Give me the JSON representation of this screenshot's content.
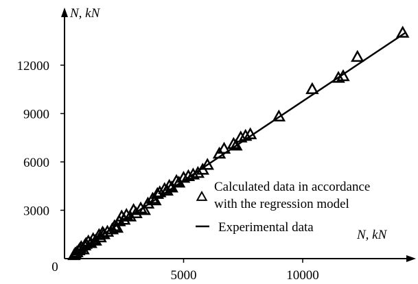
{
  "chart_data": {
    "type": "scatter",
    "x_axis": {
      "label": "N, kN",
      "range": [
        0,
        14500
      ],
      "ticks": [
        0,
        5000,
        10000
      ]
    },
    "y_axis": {
      "label": "N, kN",
      "range": [
        0,
        14500
      ],
      "ticks": [
        3000,
        6000,
        9000,
        12000
      ]
    },
    "grid": false,
    "legend": {
      "placement": "right-middle",
      "entries": [
        {
          "series": "calculated",
          "marker": "triangle",
          "label_lines": [
            "Calculated data in accordance",
            "with the regression model"
          ]
        },
        {
          "series": "experimental",
          "marker": "line",
          "label_lines": [
            "Experimental data"
          ]
        }
      ]
    },
    "series": [
      {
        "id": "calculated",
        "style": "triangle-marker",
        "color": "#000000",
        "points": [
          [
            400,
            200
          ],
          [
            450,
            300
          ],
          [
            520,
            380
          ],
          [
            600,
            500
          ],
          [
            650,
            600
          ],
          [
            700,
            700
          ],
          [
            780,
            560
          ],
          [
            850,
            800
          ],
          [
            900,
            900
          ],
          [
            1000,
            1050
          ],
          [
            1100,
            950
          ],
          [
            1200,
            1200
          ],
          [
            1300,
            1100
          ],
          [
            1450,
            1450
          ],
          [
            1500,
            1300
          ],
          [
            1600,
            1600
          ],
          [
            1650,
            1500
          ],
          [
            1800,
            1650
          ],
          [
            2000,
            1800
          ],
          [
            2100,
            2000
          ],
          [
            2200,
            1900
          ],
          [
            2300,
            2300
          ],
          [
            2400,
            2600
          ],
          [
            2500,
            2400
          ],
          [
            2600,
            2700
          ],
          [
            2750,
            2600
          ],
          [
            2900,
            3000
          ],
          [
            3000,
            2800
          ],
          [
            3200,
            3100
          ],
          [
            3350,
            3000
          ],
          [
            3500,
            3400
          ],
          [
            3700,
            3700
          ],
          [
            3800,
            3600
          ],
          [
            3900,
            4000
          ],
          [
            4000,
            4100
          ],
          [
            4200,
            4300
          ],
          [
            4300,
            4200
          ],
          [
            4400,
            4500
          ],
          [
            4500,
            4400
          ],
          [
            4700,
            4800
          ],
          [
            4800,
            4700
          ],
          [
            5000,
            5000
          ],
          [
            5200,
            5100
          ],
          [
            5400,
            5200
          ],
          [
            5600,
            5300
          ],
          [
            5800,
            5500
          ],
          [
            6000,
            5800
          ],
          [
            6500,
            6500
          ],
          [
            6700,
            6800
          ],
          [
            7100,
            7100
          ],
          [
            7200,
            7000
          ],
          [
            7400,
            7500
          ],
          [
            7600,
            7600
          ],
          [
            7800,
            7700
          ],
          [
            9000,
            8800
          ],
          [
            10400,
            10500
          ],
          [
            11500,
            11200
          ],
          [
            11700,
            11300
          ],
          [
            12300,
            12500
          ],
          [
            14200,
            14000
          ]
        ]
      },
      {
        "id": "experimental",
        "style": "line",
        "color": "#000000",
        "points": [
          [
            400,
            300
          ],
          [
            14300,
            14000
          ]
        ]
      }
    ]
  }
}
